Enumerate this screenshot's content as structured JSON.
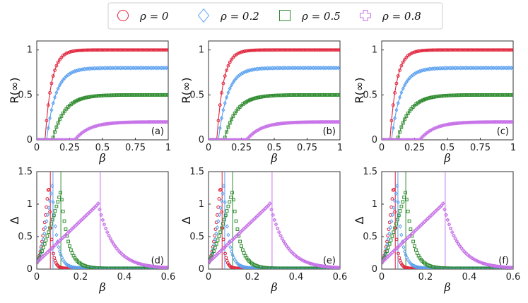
{
  "colors": {
    "rho0": "#e0233b",
    "rho02": "#5aa0f0",
    "rho05": "#2e8b2e",
    "rho08": "#c773e8"
  },
  "legend": [
    {
      "label": "ρ = 0",
      "marker": "circle",
      "color": "#e0233b"
    },
    {
      "label": "ρ = 0.2",
      "marker": "diamond",
      "color": "#5aa0f0"
    },
    {
      "label": "ρ = 0.5",
      "marker": "square",
      "color": "#2e8b2e"
    },
    {
      "label": "ρ = 0.8",
      "marker": "plus",
      "color": "#c773e8"
    }
  ],
  "chart_data": [
    {
      "panel": "(a)",
      "type": "line",
      "xlabel": "β",
      "ylabel": "R(∞)",
      "xlim": [
        0,
        1
      ],
      "ylim": [
        0,
        1.1
      ],
      "xticks": [
        "0",
        "0.25",
        "0.5",
        "0.75",
        "1"
      ],
      "xtick_values": [
        0,
        0.25,
        0.5,
        0.75,
        1
      ],
      "yticks": [
        "0",
        "0.5",
        "1"
      ],
      "ytick_values": [
        0,
        0.5,
        1
      ],
      "series": [
        {
          "name": "ρ = 0",
          "threshold": 0.063,
          "plateau": 1.0
        },
        {
          "name": "ρ = 0.2",
          "threshold": 0.075,
          "plateau": 0.8
        },
        {
          "name": "ρ = 0.5",
          "threshold": 0.12,
          "plateau": 0.5
        },
        {
          "name": "ρ = 0.8",
          "threshold": 0.29,
          "plateau": 0.2
        }
      ]
    },
    {
      "panel": "(b)",
      "type": "line",
      "xlabel": "β",
      "ylabel": "R(∞)",
      "xlim": [
        0,
        1
      ],
      "ylim": [
        0,
        1.1
      ],
      "xticks": [
        "0",
        "0.25",
        "0.5",
        "0.75",
        "1"
      ],
      "xtick_values": [
        0,
        0.25,
        0.5,
        0.75,
        1
      ],
      "yticks": [
        "0",
        "0.5",
        "1"
      ],
      "ytick_values": [
        0,
        0.5,
        1
      ],
      "series": [
        {
          "name": "ρ = 0",
          "threshold": 0.063,
          "plateau": 1.0
        },
        {
          "name": "ρ = 0.2",
          "threshold": 0.075,
          "plateau": 0.8
        },
        {
          "name": "ρ = 0.5",
          "threshold": 0.12,
          "plateau": 0.5
        },
        {
          "name": "ρ = 0.8",
          "threshold": 0.29,
          "plateau": 0.2
        }
      ]
    },
    {
      "panel": "(c)",
      "type": "line",
      "xlabel": "β",
      "ylabel": "R(∞)",
      "xlim": [
        0,
        1
      ],
      "ylim": [
        0,
        1.1
      ],
      "xticks": [
        "0",
        "0.25",
        "0.5",
        "0.75",
        "1"
      ],
      "xtick_values": [
        0,
        0.25,
        0.5,
        0.75,
        1
      ],
      "yticks": [
        "0",
        "0.5",
        "1"
      ],
      "ytick_values": [
        0,
        0.5,
        1
      ],
      "series": [
        {
          "name": "ρ = 0",
          "threshold": 0.063,
          "plateau": 1.0
        },
        {
          "name": "ρ = 0.2",
          "threshold": 0.075,
          "plateau": 0.8
        },
        {
          "name": "ρ = 0.5",
          "threshold": 0.12,
          "plateau": 0.5
        },
        {
          "name": "ρ = 0.8",
          "threshold": 0.29,
          "plateau": 0.2
        }
      ]
    },
    {
      "panel": "(d)",
      "type": "scatter",
      "xlabel": "β",
      "ylabel": "Δ",
      "xlim": [
        0,
        0.6
      ],
      "ylim": [
        0,
        1.5
      ],
      "xticks": [
        "0",
        "0.2",
        "0.4",
        "0.6"
      ],
      "xtick_values": [
        0,
        0.2,
        0.4,
        0.6
      ],
      "yticks": [
        "0",
        "0.5",
        "1",
        "1.5"
      ],
      "ytick_values": [
        0,
        0.5,
        1,
        1.5
      ],
      "series": [
        {
          "name": "ρ = 0",
          "peak_beta": 0.055,
          "peak": 1.32,
          "vline": 0.062
        },
        {
          "name": "ρ = 0.2",
          "peak_beta": 0.07,
          "peak": 1.28,
          "vline": 0.074
        },
        {
          "name": "ρ = 0.5",
          "peak_beta": 0.11,
          "peak": 1.2,
          "vline": 0.11
        },
        {
          "name": "ρ = 0.8",
          "peak_beta": 0.28,
          "peak": 1.0,
          "vline": 0.29
        }
      ]
    },
    {
      "panel": "(e)",
      "type": "scatter",
      "xlabel": "β",
      "ylabel": "Δ",
      "xlim": [
        0,
        0.6
      ],
      "ylim": [
        0,
        1.5
      ],
      "xticks": [
        "0",
        "0.2",
        "0.4",
        "0.6"
      ],
      "xtick_values": [
        0,
        0.2,
        0.4,
        0.6
      ],
      "yticks": [
        "0",
        "0.5",
        "1",
        "1.5"
      ],
      "ytick_values": [
        0,
        0.5,
        1,
        1.5
      ],
      "series": [
        {
          "name": "ρ = 0",
          "peak_beta": 0.055,
          "peak": 1.32,
          "vline": 0.062
        },
        {
          "name": "ρ = 0.2",
          "peak_beta": 0.07,
          "peak": 1.28,
          "vline": 0.074
        },
        {
          "name": "ρ = 0.5",
          "peak_beta": 0.11,
          "peak": 1.2,
          "vline": 0.11
        },
        {
          "name": "ρ = 0.8",
          "peak_beta": 0.28,
          "peak": 1.0,
          "vline": 0.29
        }
      ]
    },
    {
      "panel": "(f)",
      "type": "scatter",
      "xlabel": "β",
      "ylabel": "Δ",
      "xlim": [
        0,
        0.6
      ],
      "ylim": [
        0,
        1.5
      ],
      "xticks": [
        "0",
        "0.2",
        "0.4",
        "0.6"
      ],
      "xtick_values": [
        0,
        0.2,
        0.4,
        0.6
      ],
      "yticks": [
        "0",
        "0.5",
        "1",
        "1.5"
      ],
      "ytick_values": [
        0,
        0.5,
        1,
        1.5
      ],
      "series": [
        {
          "name": "ρ = 0",
          "peak_beta": 0.055,
          "peak": 1.32,
          "vline": 0.062
        },
        {
          "name": "ρ = 0.2",
          "peak_beta": 0.07,
          "peak": 1.28,
          "vline": 0.074
        },
        {
          "name": "ρ = 0.5",
          "peak_beta": 0.11,
          "peak": 1.2,
          "vline": 0.11
        },
        {
          "name": "ρ = 0.8",
          "peak_beta": 0.28,
          "peak": 1.0,
          "vline": 0.29
        }
      ]
    }
  ]
}
